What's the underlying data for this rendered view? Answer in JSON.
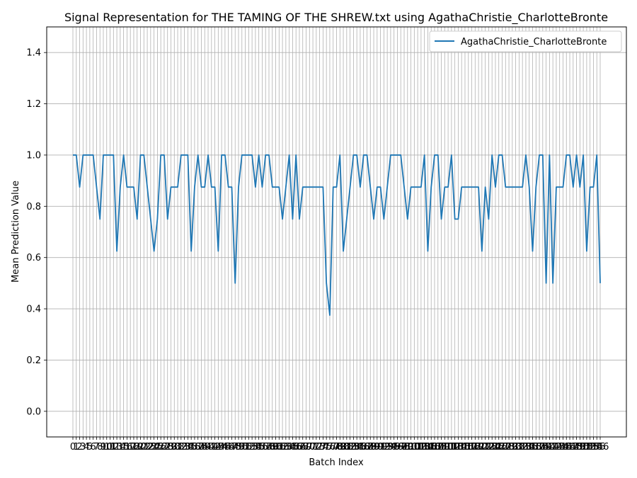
{
  "chart_data": {
    "type": "line",
    "title": "Signal Representation for THE TAMING OF THE SHREW.txt using AgathaChristie_CharlotteBronte",
    "xlabel": "Batch Index",
    "ylabel": "Mean Prediction Value",
    "ylim": [
      -0.1,
      1.5
    ],
    "yticks": [
      0.0,
      0.2,
      0.4,
      0.6,
      0.8,
      1.0,
      1.2,
      1.4
    ],
    "grid": true,
    "legend_position": "top-right",
    "series": [
      {
        "name": "AgathaChristie_CharlotteBronte",
        "color": "#1f77b4",
        "values": [
          1.0,
          1.0,
          0.875,
          1.0,
          1.0,
          1.0,
          1.0,
          0.875,
          0.75,
          1.0,
          1.0,
          1.0,
          1.0,
          0.625,
          0.875,
          1.0,
          0.875,
          0.875,
          0.875,
          0.75,
          1.0,
          1.0,
          0.875,
          0.75,
          0.625,
          0.75,
          1.0,
          1.0,
          0.75,
          0.875,
          0.875,
          0.875,
          1.0,
          1.0,
          1.0,
          0.625,
          0.875,
          1.0,
          0.875,
          0.875,
          1.0,
          0.875,
          0.875,
          0.625,
          1.0,
          1.0,
          0.875,
          0.875,
          0.5,
          0.875,
          1.0,
          1.0,
          1.0,
          1.0,
          0.875,
          1.0,
          0.875,
          1.0,
          1.0,
          0.875,
          0.875,
          0.875,
          0.75,
          0.875,
          1.0,
          0.75,
          1.0,
          0.75,
          0.875,
          0.875,
          0.875,
          0.875,
          0.875,
          0.875,
          0.875,
          0.5,
          0.375,
          0.875,
          0.875,
          1.0,
          0.625,
          0.75,
          0.875,
          1.0,
          1.0,
          0.875,
          1.0,
          1.0,
          0.875,
          0.75,
          0.875,
          0.875,
          0.75,
          0.875,
          1.0,
          1.0,
          1.0,
          1.0,
          0.875,
          0.75,
          0.875,
          0.875,
          0.875,
          0.875,
          1.0,
          0.625,
          0.875,
          1.0,
          1.0,
          0.75,
          0.875,
          0.875,
          1.0,
          0.75,
          0.75,
          0.875,
          0.875,
          0.875,
          0.875,
          0.875,
          0.875,
          0.625,
          0.875,
          0.75,
          1.0,
          0.875,
          1.0,
          1.0,
          0.875,
          0.875,
          0.875,
          0.875,
          0.875,
          0.875,
          1.0,
          0.875,
          0.625,
          0.875,
          1.0,
          1.0,
          0.5,
          1.0,
          0.5,
          0.875,
          0.875,
          0.875,
          1.0,
          1.0,
          0.875,
          1.0,
          0.875,
          1.0,
          0.625,
          0.875,
          0.875,
          1.0,
          0.5
        ]
      }
    ]
  }
}
